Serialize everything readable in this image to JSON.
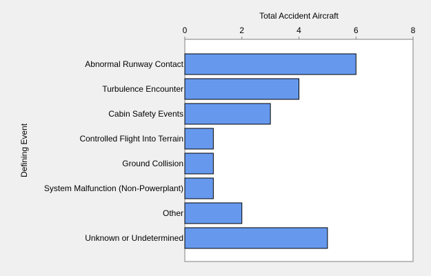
{
  "chart_data": {
    "type": "bar",
    "orientation": "horizontal",
    "xlabel": "Total Accident Aircraft",
    "ylabel": "Defining Event",
    "xlim": [
      0,
      8
    ],
    "xticks": [
      0,
      2,
      4,
      6,
      8
    ],
    "x_axis_position": "top",
    "grid": false,
    "categories": [
      "Abnormal Runway Contact",
      "Turbulence Encounter",
      "Cabin Safety Events",
      "Controlled Flight Into Terrain",
      "Ground Collision",
      "System Malfunction (Non-Powerplant)",
      "Other",
      "Unknown or Undetermined"
    ],
    "values": [
      6,
      4,
      3,
      1,
      1,
      1,
      2,
      5
    ]
  },
  "colors": {
    "background": "#f0f0f0",
    "plot_background": "#ffffff",
    "bar_fill": "#6699ee",
    "bar_stroke": "#000000",
    "axis": "#7f7f7f"
  }
}
